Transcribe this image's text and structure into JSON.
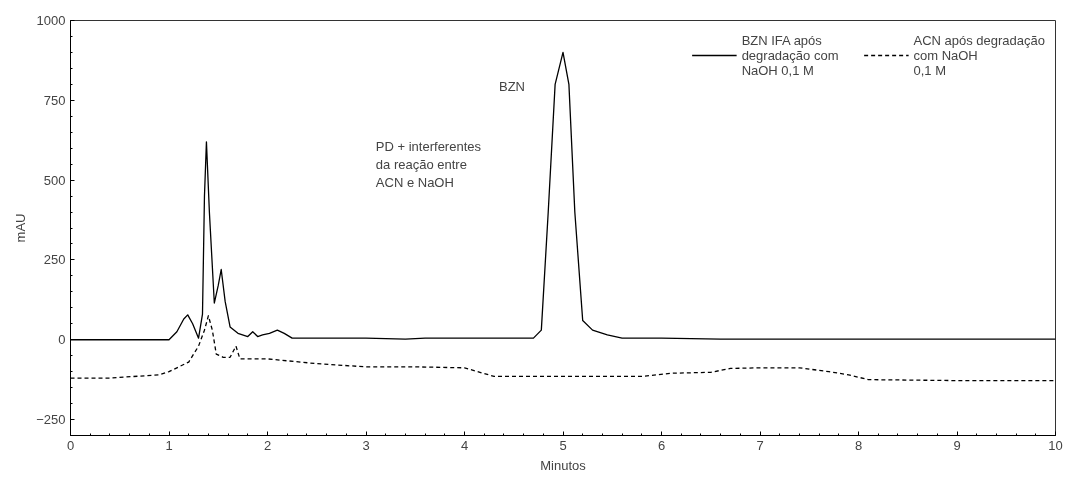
{
  "chart_data": {
    "type": "line",
    "xlabel": "Minutos",
    "ylabel": "mAU",
    "xlim": [
      0,
      10
    ],
    "ylim": [
      -300,
      1000
    ],
    "xticks": [
      0,
      1,
      2,
      3,
      4,
      5,
      6,
      7,
      8,
      9,
      10
    ],
    "yticks": [
      -250,
      0,
      250,
      500,
      750,
      1000
    ],
    "grid": false,
    "legend": "top right",
    "series": [
      {
        "name": "BZN IFA após degradação com NaOH 0,1 M",
        "color": "#000000",
        "line_style": "solid",
        "x": [
          0,
          1.0,
          1.08,
          1.15,
          1.19,
          1.24,
          1.3,
          1.34,
          1.36,
          1.38,
          1.41,
          1.46,
          1.5,
          1.53,
          1.57,
          1.62,
          1.7,
          1.8,
          1.85,
          1.9,
          1.95,
          2.02,
          2.1,
          2.17,
          2.25,
          3.0,
          3.4,
          3.6,
          4.0,
          4.7,
          4.78,
          4.85,
          4.92,
          5.0,
          5.06,
          5.12,
          5.2,
          5.3,
          5.45,
          5.6,
          6.0,
          6.6,
          10
        ],
        "values": [
          0,
          0,
          25,
          65,
          78,
          50,
          5,
          80,
          450,
          620,
          400,
          115,
          170,
          220,
          120,
          40,
          20,
          10,
          25,
          10,
          15,
          20,
          30,
          20,
          5,
          5,
          2,
          5,
          5,
          5,
          30,
          400,
          800,
          900,
          800,
          400,
          60,
          30,
          15,
          5,
          5,
          2,
          2
        ]
      },
      {
        "name": "ACN após degradação com NaOH 0,1 M",
        "color": "#000000",
        "line_style": "dashed",
        "x": [
          0,
          0.4,
          0.9,
          1.0,
          1.1,
          1.2,
          1.3,
          1.36,
          1.4,
          1.44,
          1.48,
          1.55,
          1.62,
          1.68,
          1.72,
          2.0,
          2.5,
          3.0,
          3.5,
          4.0,
          4.3,
          5.0,
          5.8,
          6.1,
          6.5,
          6.7,
          7.0,
          7.4,
          7.7,
          7.9,
          8.1,
          9.0,
          10
        ],
        "values": [
          -120,
          -120,
          -110,
          -100,
          -85,
          -70,
          -20,
          30,
          75,
          30,
          -45,
          -55,
          -55,
          -20,
          -60,
          -60,
          -75,
          -85,
          -85,
          -88,
          -115,
          -115,
          -115,
          -105,
          -102,
          -90,
          -88,
          -88,
          -100,
          -110,
          -125,
          -128,
          -128
        ]
      }
    ],
    "annotations": [
      "BZN",
      "PD + interferentes\nda reação entre\nACN e NaOH"
    ]
  }
}
